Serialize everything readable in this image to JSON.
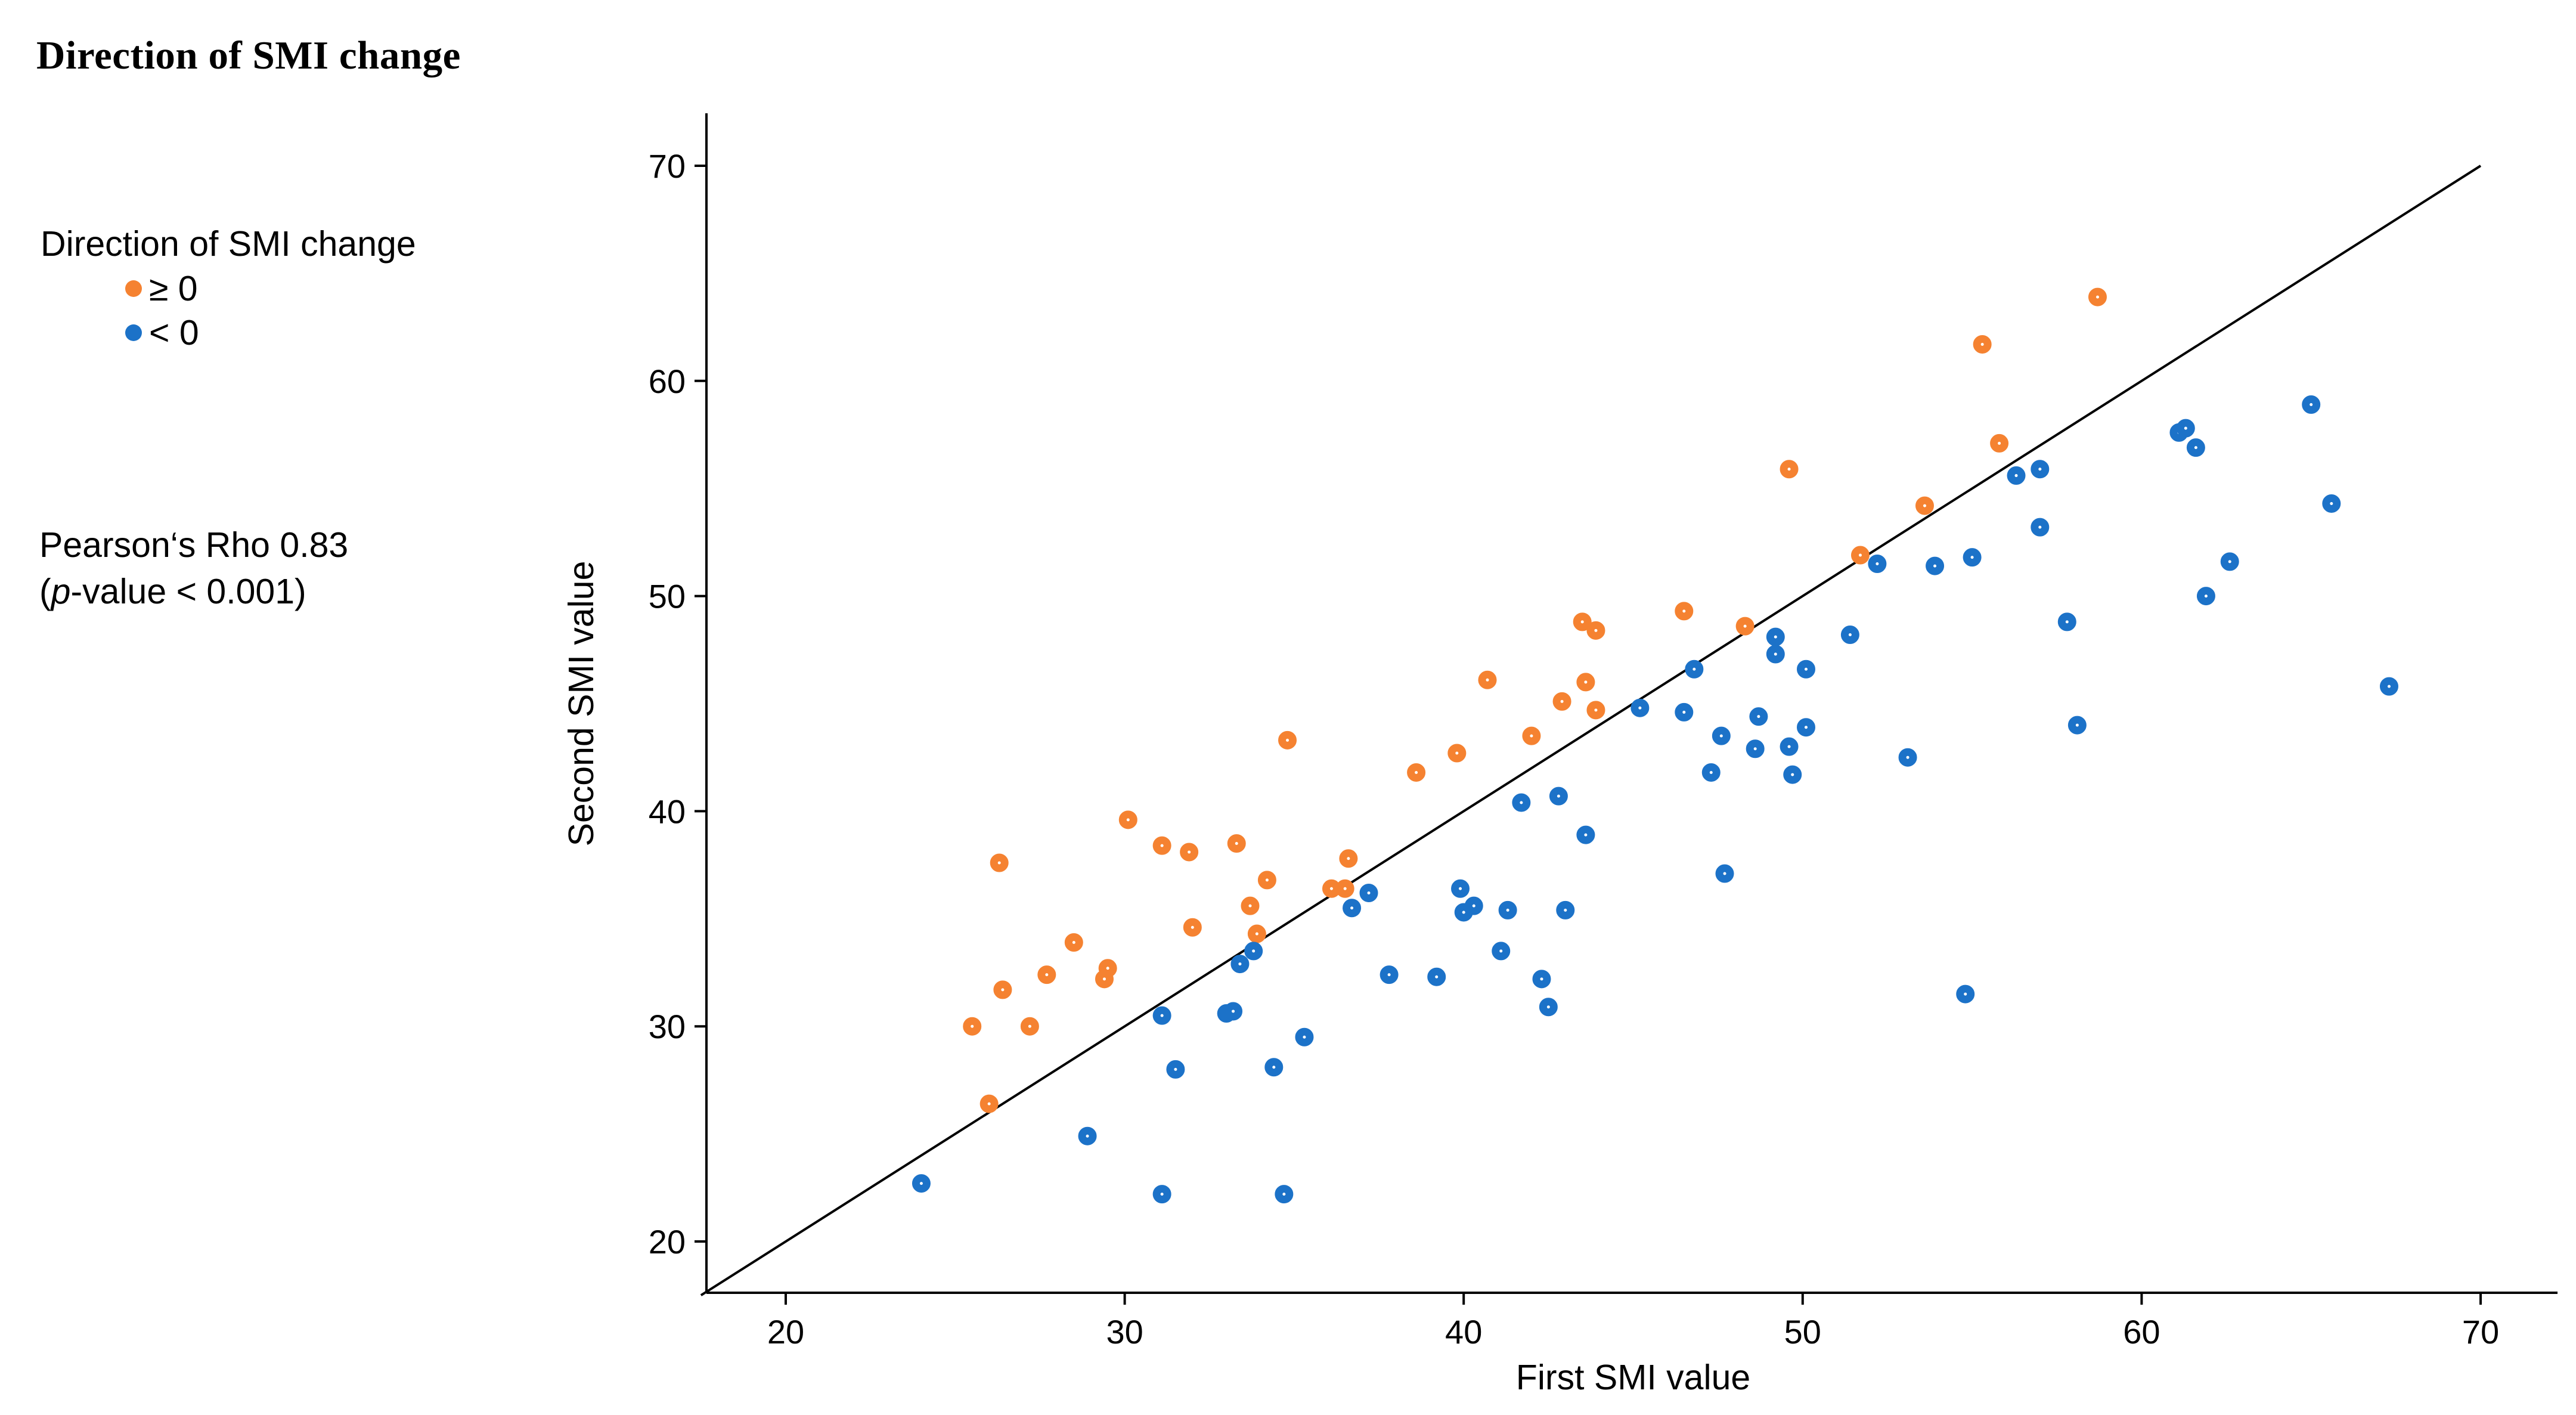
{
  "page": {
    "title": "Direction of SMI change"
  },
  "legend": {
    "title": "Direction of SMI change",
    "items": [
      {
        "label": "≥ 0",
        "color": "#F58231"
      },
      {
        "label": "< 0",
        "color": "#1C72C8"
      }
    ]
  },
  "stats": {
    "line1": "Pearson‘s Rho 0.83",
    "open_paren": "(",
    "p_italic": "p",
    "line2_rest": "-value < 0.001)"
  },
  "chart_data": {
    "type": "scatter",
    "title": "Direction of SMI change",
    "xlabel": "First SMI value",
    "ylabel": "Second SMI value",
    "xlim": [
      17.5,
      72.5
    ],
    "ylim": [
      17.5,
      72.5
    ],
    "xticks": [
      20,
      30,
      40,
      50,
      60,
      70
    ],
    "yticks": [
      20,
      30,
      40,
      50,
      60,
      70
    ],
    "reference_line": {
      "type": "identity",
      "from": [
        17.5,
        17.5
      ],
      "to": [
        70,
        70
      ]
    },
    "grid": false,
    "legend_position": "left",
    "series": [
      {
        "name": "≥ 0",
        "color": "#F58231",
        "points": [
          [
            25.5,
            30.0
          ],
          [
            26.0,
            26.4
          ],
          [
            26.3,
            37.6
          ],
          [
            26.4,
            31.7
          ],
          [
            27.2,
            30.0
          ],
          [
            27.7,
            32.4
          ],
          [
            28.5,
            33.9
          ],
          [
            29.4,
            32.2
          ],
          [
            29.5,
            32.7
          ],
          [
            30.1,
            39.6
          ],
          [
            31.1,
            38.4
          ],
          [
            31.9,
            38.1
          ],
          [
            32.0,
            34.6
          ],
          [
            33.3,
            38.5
          ],
          [
            33.7,
            35.6
          ],
          [
            33.9,
            34.3
          ],
          [
            34.2,
            36.8
          ],
          [
            34.8,
            43.3
          ],
          [
            36.1,
            36.4
          ],
          [
            36.5,
            36.4
          ],
          [
            36.6,
            37.8
          ],
          [
            38.6,
            41.8
          ],
          [
            39.8,
            42.7
          ],
          [
            40.7,
            46.1
          ],
          [
            42.0,
            43.5
          ],
          [
            42.9,
            45.1
          ],
          [
            43.5,
            48.8
          ],
          [
            43.6,
            46.0
          ],
          [
            43.9,
            48.4
          ],
          [
            43.9,
            44.7
          ],
          [
            46.5,
            49.3
          ],
          [
            48.3,
            48.6
          ],
          [
            49.6,
            55.9
          ],
          [
            51.7,
            51.9
          ],
          [
            53.6,
            54.2
          ],
          [
            55.3,
            61.7
          ],
          [
            55.8,
            57.1
          ],
          [
            58.7,
            63.9
          ]
        ]
      },
      {
        "name": "< 0",
        "color": "#1C72C8",
        "points": [
          [
            24.0,
            22.7
          ],
          [
            28.9,
            24.9
          ],
          [
            31.1,
            30.5
          ],
          [
            31.1,
            22.2
          ],
          [
            31.5,
            28.0
          ],
          [
            33.0,
            30.6
          ],
          [
            33.2,
            30.7
          ],
          [
            33.4,
            32.9
          ],
          [
            33.8,
            33.5
          ],
          [
            34.4,
            28.1
          ],
          [
            34.7,
            22.2
          ],
          [
            35.3,
            29.5
          ],
          [
            36.7,
            35.5
          ],
          [
            37.2,
            36.2
          ],
          [
            37.8,
            32.4
          ],
          [
            39.2,
            32.3
          ],
          [
            39.9,
            36.4
          ],
          [
            40.0,
            35.3
          ],
          [
            40.3,
            35.6
          ],
          [
            41.1,
            33.5
          ],
          [
            41.3,
            35.4
          ],
          [
            41.7,
            40.4
          ],
          [
            42.3,
            32.2
          ],
          [
            42.5,
            30.9
          ],
          [
            42.8,
            40.7
          ],
          [
            43.0,
            35.4
          ],
          [
            43.6,
            38.9
          ],
          [
            45.2,
            44.8
          ],
          [
            46.5,
            44.6
          ],
          [
            46.8,
            46.6
          ],
          [
            47.3,
            41.8
          ],
          [
            47.6,
            43.5
          ],
          [
            47.7,
            37.1
          ],
          [
            48.6,
            42.9
          ],
          [
            48.7,
            44.4
          ],
          [
            49.2,
            48.1
          ],
          [
            49.2,
            47.3
          ],
          [
            49.6,
            43.0
          ],
          [
            49.7,
            41.7
          ],
          [
            50.1,
            46.6
          ],
          [
            50.1,
            43.9
          ],
          [
            51.4,
            48.2
          ],
          [
            52.2,
            51.5
          ],
          [
            53.1,
            42.5
          ],
          [
            53.9,
            51.4
          ],
          [
            54.8,
            31.5
          ],
          [
            55.0,
            51.8
          ],
          [
            56.3,
            55.6
          ],
          [
            57.0,
            55.9
          ],
          [
            57.0,
            53.2
          ],
          [
            57.8,
            48.8
          ],
          [
            58.1,
            44.0
          ],
          [
            61.1,
            57.6
          ],
          [
            61.3,
            57.8
          ],
          [
            61.6,
            56.9
          ],
          [
            61.9,
            50.0
          ],
          [
            62.6,
            51.6
          ],
          [
            65.0,
            58.9
          ],
          [
            65.6,
            54.3
          ],
          [
            67.3,
            45.8
          ]
        ]
      }
    ]
  }
}
